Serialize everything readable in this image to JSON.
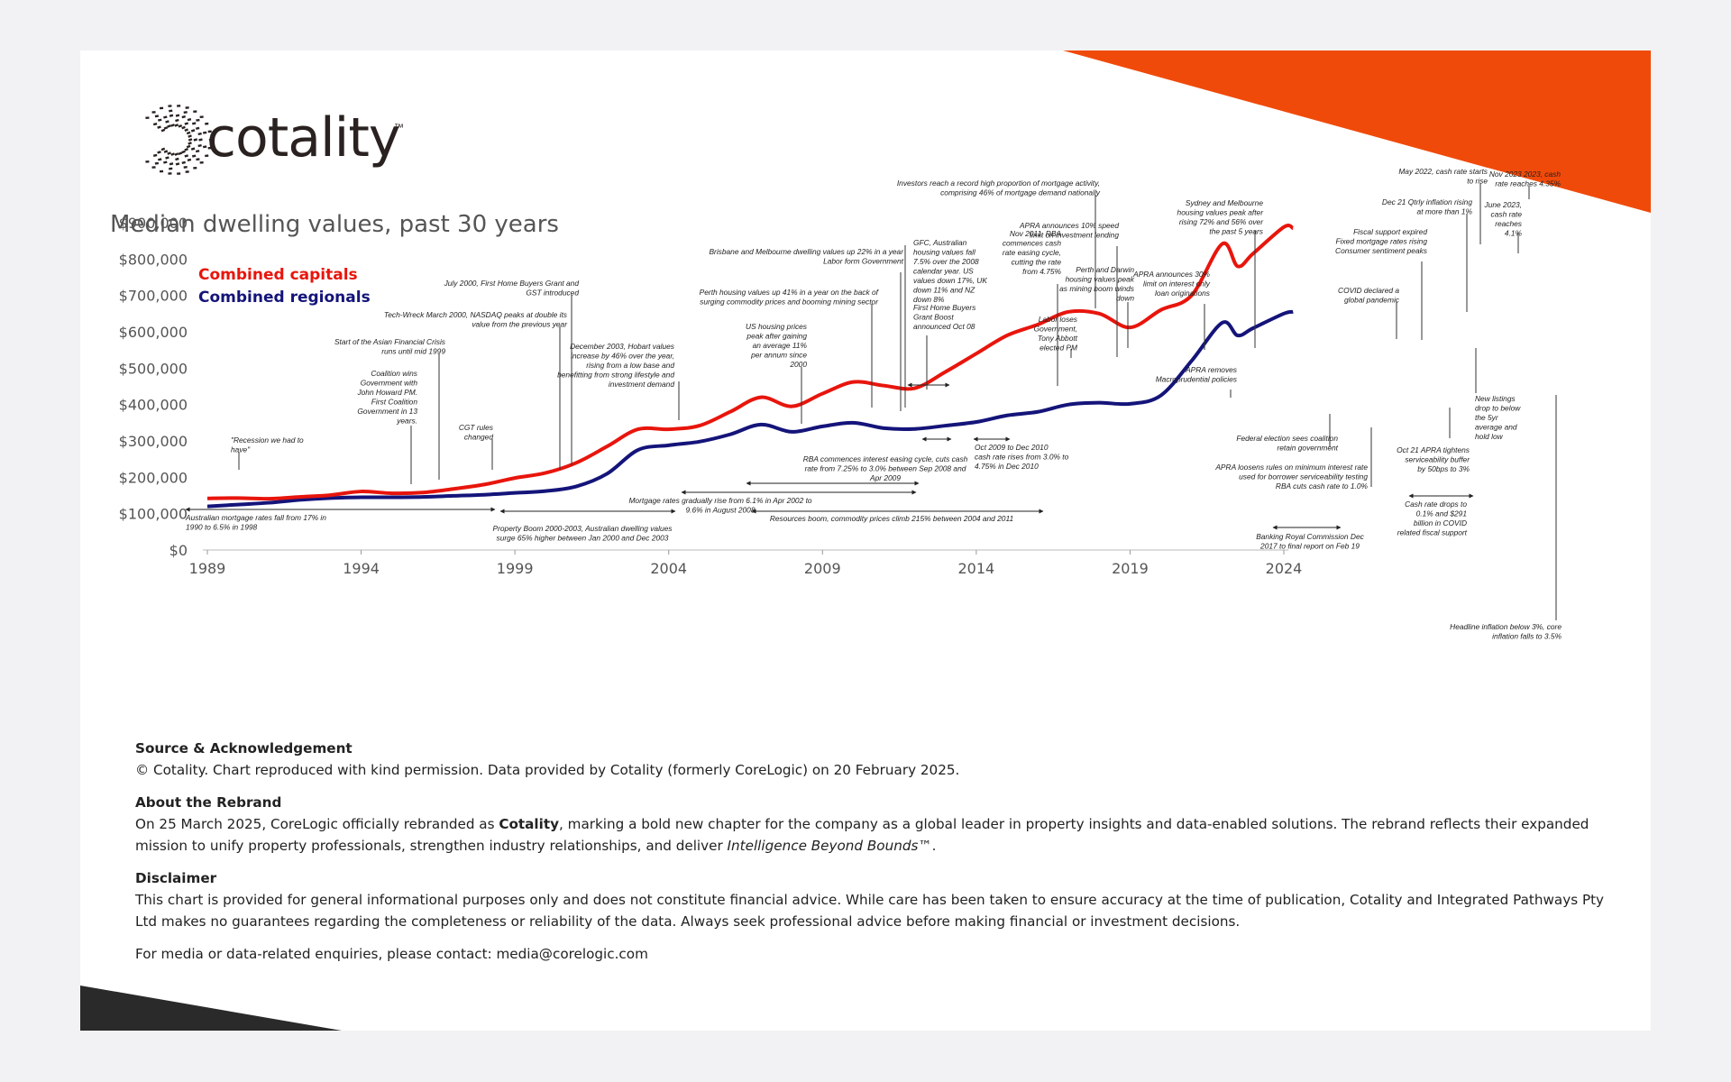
{
  "brand": {
    "name": "cotality",
    "tm": "™"
  },
  "colors": {
    "capitals": "#e8150c",
    "regionals": "#14147a",
    "accent": "#f04a0a",
    "dark": "#2a2a2a"
  },
  "chart_data": {
    "type": "line",
    "title": "Median dwelling values, past 30 years",
    "xlabel": "",
    "ylabel": "",
    "xlim": [
      1989,
      2024
    ],
    "ylim": [
      0,
      900000
    ],
    "legend_position": "top-left",
    "x_ticks": [
      "1989",
      "1994",
      "1999",
      "2004",
      "2009",
      "2014",
      "2019",
      "2024"
    ],
    "y_ticks": [
      "$0",
      "$100,000",
      "$200,000",
      "$300,000",
      "$400,000",
      "$500,000",
      "$600,000",
      "$700,000",
      "$800,000",
      "$900,000"
    ],
    "series": [
      {
        "name": "Combined capitals",
        "points": [
          [
            1989,
            142000
          ],
          [
            1990,
            143000
          ],
          [
            1991,
            141000
          ],
          [
            1992,
            146000
          ],
          [
            1993,
            151000
          ],
          [
            1994,
            161000
          ],
          [
            1995,
            156000
          ],
          [
            1996,
            158000
          ],
          [
            1997,
            168000
          ],
          [
            1998,
            180000
          ],
          [
            1999,
            198000
          ],
          [
            2000,
            212000
          ],
          [
            2001,
            240000
          ],
          [
            2002,
            285000
          ],
          [
            2003,
            332000
          ],
          [
            2004,
            332000
          ],
          [
            2005,
            342000
          ],
          [
            2006,
            380000
          ],
          [
            2007,
            420000
          ],
          [
            2008,
            395000
          ],
          [
            2009,
            430000
          ],
          [
            2010,
            462000
          ],
          [
            2011,
            452000
          ],
          [
            2012,
            445000
          ],
          [
            2013,
            490000
          ],
          [
            2014,
            540000
          ],
          [
            2015,
            590000
          ],
          [
            2016,
            620000
          ],
          [
            2017,
            655000
          ],
          [
            2018,
            650000
          ],
          [
            2019,
            612000
          ],
          [
            2020,
            660000
          ],
          [
            2021,
            700000
          ],
          [
            2022,
            842000
          ],
          [
            2022.5,
            780000
          ],
          [
            2023,
            815000
          ],
          [
            2024,
            888000
          ],
          [
            2024.3,
            885000
          ]
        ]
      },
      {
        "name": "Combined regionals",
        "points": [
          [
            1989,
            120000
          ],
          [
            1990,
            125000
          ],
          [
            1991,
            130000
          ],
          [
            1992,
            138000
          ],
          [
            1993,
            143000
          ],
          [
            1994,
            145000
          ],
          [
            1995,
            145000
          ],
          [
            1996,
            146000
          ],
          [
            1997,
            149000
          ],
          [
            1998,
            152000
          ],
          [
            1999,
            157000
          ],
          [
            2000,
            162000
          ],
          [
            2001,
            175000
          ],
          [
            2002,
            210000
          ],
          [
            2003,
            275000
          ],
          [
            2004,
            288000
          ],
          [
            2005,
            298000
          ],
          [
            2006,
            318000
          ],
          [
            2007,
            345000
          ],
          [
            2008,
            325000
          ],
          [
            2009,
            340000
          ],
          [
            2010,
            350000
          ],
          [
            2011,
            335000
          ],
          [
            2012,
            333000
          ],
          [
            2013,
            342000
          ],
          [
            2014,
            352000
          ],
          [
            2015,
            370000
          ],
          [
            2016,
            380000
          ],
          [
            2017,
            400000
          ],
          [
            2018,
            405000
          ],
          [
            2019,
            402000
          ],
          [
            2020,
            425000
          ],
          [
            2021,
            520000
          ],
          [
            2022,
            625000
          ],
          [
            2022.5,
            590000
          ],
          [
            2023,
            610000
          ],
          [
            2024,
            650000
          ],
          [
            2024.3,
            655000
          ]
        ]
      }
    ]
  },
  "annotations": [
    {
      "lines": [
        "\"Recession we had to",
        "have\""
      ]
    },
    {
      "lines": [
        "Australian mortgage rates fall from 17% in",
        "1990 to 6.5% in 1998"
      ]
    },
    {
      "lines": [
        "Start of the Asian Financial Crisis",
        "runs until mid 1999"
      ]
    },
    {
      "lines": [
        "Coalition wins",
        "Government with",
        "John Howard PM.",
        "First Coalition",
        "Government in 13",
        "years."
      ]
    },
    {
      "lines": [
        "Tech-Wreck March 2000, NASDAQ peaks at double its",
        "value from the previous year"
      ]
    },
    {
      "lines": [
        "July 2000, First Home Buyers Grant and",
        "GST introduced"
      ]
    },
    {
      "lines": [
        "CGT rules",
        "changed"
      ]
    },
    {
      "lines": [
        "Property Boom 2000-2003, Australian dwelling values",
        "surge 65% higher between Jan 2000 and Dec 2003"
      ]
    },
    {
      "lines": [
        "December 2003, Hobart values",
        "increase by 46% over the year,",
        "rising from a low base and",
        "benefitting from strong lifestyle and",
        "investment demand"
      ]
    },
    {
      "lines": [
        "Brisbane and Melbourne dwelling values up 22% in a year",
        "Labor form Government"
      ]
    },
    {
      "lines": [
        "Perth housing values up 41% in a year on the back of",
        "surging commodity prices and booming mining sector"
      ]
    },
    {
      "lines": [
        "US housing prices",
        "peak after gaining",
        "an average 11%",
        "per annum since",
        "2000"
      ]
    },
    {
      "lines": [
        "Mortgage rates gradually rise from 6.1% in Apr 2002 to",
        "9.6% in August 2008"
      ]
    },
    {
      "lines": [
        "RBA commences interest easing cycle, cuts cash",
        "rate from 7.25% to 3.0% between Sep 2008 and",
        "Apr 2009"
      ]
    },
    {
      "lines": [
        "Resources boom, commodity prices climb 215% between 2004 and 2011"
      ]
    },
    {
      "lines": [
        "GFC, Australian",
        "housing values fall",
        "7.5% over the 2008",
        "calendar year.  US",
        "values down 17%, UK",
        "down 11% and NZ",
        "down 8%"
      ]
    },
    {
      "lines": [
        "First Home Buyers",
        "Grant Boost",
        "announced Oct 08"
      ]
    },
    {
      "lines": [
        "Oct 2009 to Dec 2010",
        "cash rate rises from 3.0% to",
        "4.75% in Dec 2010"
      ]
    },
    {
      "lines": [
        "Nov 2011, RBA",
        "commences cash",
        "rate easing cycle,",
        "cutting the rate",
        "from 4.75%"
      ]
    },
    {
      "lines": [
        "Investors reach a record high proportion of mortgage activity,",
        "comprising 46% of mortgage demand nationally"
      ]
    },
    {
      "lines": [
        "APRA announces 10% speed",
        "limit on investment lending"
      ]
    },
    {
      "lines": [
        "Perth and Darwin",
        "housing values peak",
        "as mining boom winds",
        "down"
      ]
    },
    {
      "lines": [
        "Labor loses",
        "Government,",
        "Tony Abbott",
        "elected PM"
      ]
    },
    {
      "lines": [
        "Sydney and Melbourne",
        "housing values peak after",
        "rising 72% and 56% over",
        "the past 5 years"
      ]
    },
    {
      "lines": [
        "APRA announces 30%",
        "limit on interest only",
        "loan originations"
      ]
    },
    {
      "lines": [
        "APRA removes",
        "Macroprudential policies"
      ]
    },
    {
      "lines": [
        "Federal election sees coalition",
        "retain government"
      ]
    },
    {
      "lines": [
        "APRA loosens rules on minimum interest rate",
        "used for borrower serviceability testing",
        "RBA cuts cash rate to 1.0%"
      ]
    },
    {
      "lines": [
        "Banking Royal Commission Dec",
        "2017 to final report on Feb 19"
      ]
    },
    {
      "lines": [
        "Fiscal support expired",
        "Fixed mortgage rates rising",
        "Consumer sentiment peaks"
      ]
    },
    {
      "lines": [
        "COVID declared a",
        "global pandemic"
      ]
    },
    {
      "lines": [
        "Dec 21 Qtrly inflation rising",
        "at more than 1%"
      ]
    },
    {
      "lines": [
        "May 2022, cash rate starts",
        "to rise"
      ]
    },
    {
      "lines": [
        "Nov 2023 2023, cash",
        "rate reaches 4.35%"
      ]
    },
    {
      "lines": [
        "June 2023,",
        "cash rate",
        "reaches",
        "4.1%"
      ]
    },
    {
      "lines": [
        "Oct 21 APRA tightens",
        "serviceability buffer",
        "by 50bps to 3%"
      ]
    },
    {
      "lines": [
        "New listings",
        "drop to below",
        "the 5yr",
        "average and",
        "hold low"
      ]
    },
    {
      "lines": [
        "Cash rate drops to",
        "0.1% and  $291",
        "billion in COVID",
        "related fiscal support"
      ]
    },
    {
      "lines": [
        "Headline inflation below 3%, core",
        "inflation falls to 3.5%"
      ]
    }
  ],
  "notes": {
    "source_heading": "Source & Acknowledgement",
    "source_text": "© Cotality. Chart reproduced with kind permission. Data provided by Cotality (formerly CoreLogic) on 20 February 2025.",
    "rebrand_heading": "About the Rebrand",
    "rebrand_pre": "On 25 March 2025, CoreLogic officially rebranded as ",
    "rebrand_bold": "Cotality",
    "rebrand_mid": ", marking a bold new chapter for the company as a global leader in property insights and data-enabled solutions. The rebrand reflects their expanded mission to unify property professionals, strengthen industry relationships, and deliver ",
    "rebrand_italic": "Intelligence Beyond Bounds™",
    "rebrand_post": ".",
    "disclaimer_heading": "Disclaimer",
    "disclaimer_text": "This chart is provided for general informational purposes only and does not constitute financial advice. While care has been taken to ensure accuracy at the time of publication, Cotality and Integrated Pathways Pty Ltd makes no guarantees regarding the completeness or reliability of the data. Always seek professional advice before making financial or investment decisions.",
    "contact_text": "For media or data-related enquiries, please contact: media@corelogic.com"
  }
}
